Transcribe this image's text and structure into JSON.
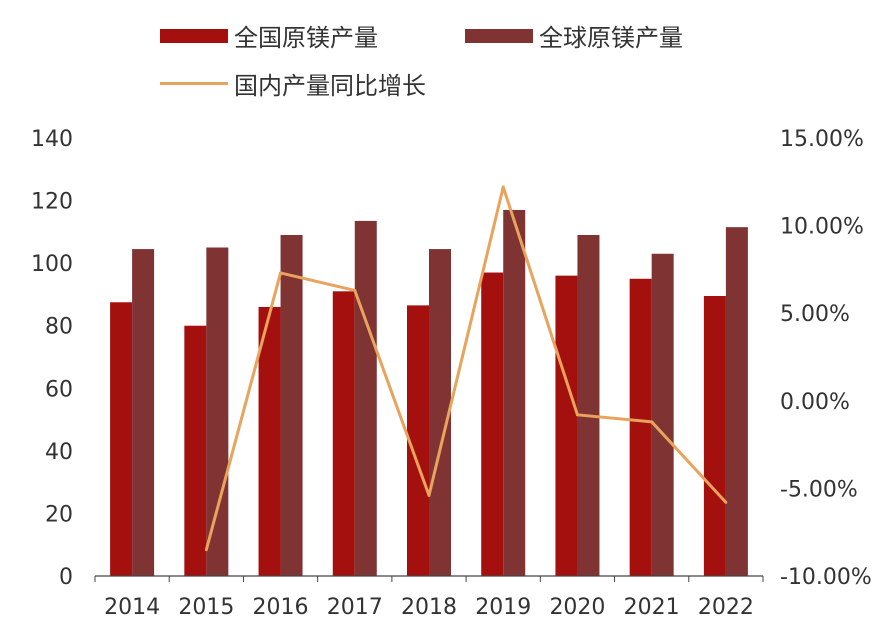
{
  "chart_data": {
    "type": "bar",
    "categories": [
      "2014",
      "2015",
      "2016",
      "2017",
      "2018",
      "2019",
      "2020",
      "2021",
      "2022"
    ],
    "series": [
      {
        "name": "全国原镁产量",
        "axis": "left",
        "kind": "bar",
        "color": "#A3100E",
        "values": [
          87.5,
          80,
          86,
          91,
          86.5,
          97,
          96,
          95,
          89.5
        ]
      },
      {
        "name": "全球原镁产量",
        "axis": "left",
        "kind": "bar",
        "color": "#7F3333",
        "values": [
          104.5,
          105,
          109,
          113.5,
          104.5,
          117,
          109,
          103,
          111.5
        ]
      },
      {
        "name": "国内产量同比增长",
        "axis": "right",
        "kind": "line",
        "color": "#E8A35C",
        "values": [
          null,
          -8.5,
          7.3,
          6.3,
          -5.4,
          12.2,
          -0.8,
          -1.2,
          -5.8
        ]
      }
    ],
    "ylim": [
      0,
      140
    ],
    "yticks": [
      0,
      20,
      40,
      60,
      80,
      100,
      120,
      140
    ],
    "y2lim": [
      -10,
      15
    ],
    "y2ticks": [
      -10,
      -5,
      0,
      5,
      10,
      15
    ],
    "y2tick_labels": [
      "-10.00%",
      "-5.00%",
      "0.00%",
      "5.00%",
      "10.00%",
      "15.00%"
    ],
    "grid": false,
    "legend_position": "top"
  }
}
